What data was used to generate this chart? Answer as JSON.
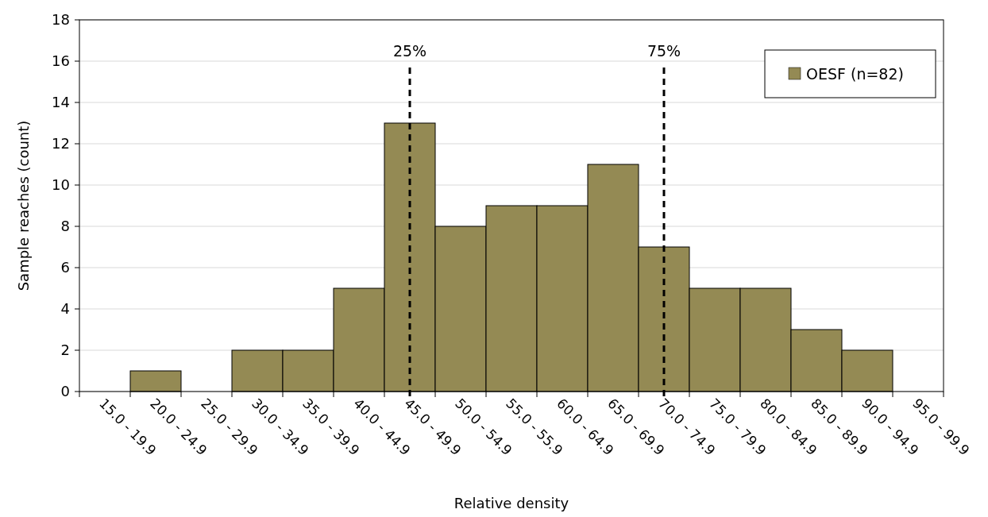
{
  "chart_data": {
    "type": "bar",
    "xlabel": "Relative density",
    "ylabel": "Sample reaches (count)",
    "categories": [
      "15.0 - 19.9",
      "20.0 - 24.9",
      "25.0 - 29.9",
      "30.0 - 34.9",
      "35.0 - 39.9",
      "40.0 - 44.9",
      "45.0 - 49.9",
      "50.0 - 54.9",
      "55.0 - 55.9",
      "60.0 - 64.9",
      "65.0 - 69.9",
      "70.0 - 74.9",
      "75.0 - 79.9",
      "80.0 - 84.9",
      "85.0 - 89.9",
      "90.0 - 94.9",
      "95.0 - 99.9"
    ],
    "series": [
      {
        "name": "OESF (n=82)",
        "color": "#948a54",
        "values": [
          0,
          1,
          0,
          2,
          2,
          5,
          13,
          8,
          9,
          9,
          11,
          7,
          5,
          5,
          3,
          2,
          0
        ]
      }
    ],
    "ylim": [
      0,
      18
    ],
    "yticks": [
      0,
      2,
      4,
      6,
      8,
      10,
      12,
      14,
      16,
      18
    ],
    "grid": "y",
    "legend": "top right",
    "ref_lines": [
      {
        "axis": "x",
        "value": "45.0 - 49.9",
        "label": "25%",
        "color": "#000000",
        "line_style": "dashed"
      },
      {
        "axis": "x",
        "value": "70.0 - 74.9",
        "label": "75%",
        "color": "#000000",
        "line_style": "dashed"
      }
    ]
  }
}
